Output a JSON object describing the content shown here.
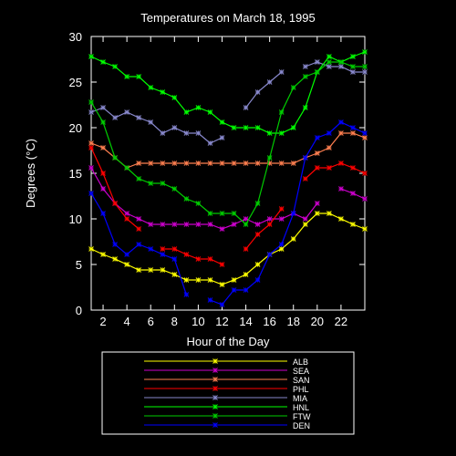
{
  "chart_data": {
    "type": "line",
    "title": "Temperatures on March 18, 1995",
    "xlabel": "Hour of the Day",
    "ylabel": "Degrees (°C)",
    "xlim": [
      1,
      24
    ],
    "ylim": [
      0,
      30
    ],
    "xticks": [
      2,
      4,
      6,
      8,
      10,
      12,
      14,
      16,
      18,
      20,
      22
    ],
    "yticks": [
      0,
      5,
      10,
      15,
      20,
      25,
      30
    ],
    "grid": false,
    "legend_position": "bottom",
    "series": [
      {
        "name": "ALB",
        "color": "#ffff00",
        "points": [
          [
            1,
            6.7
          ],
          [
            2,
            6.1
          ],
          [
            3,
            5.6
          ],
          [
            4,
            5.0
          ],
          [
            5,
            4.4
          ],
          [
            6,
            4.4
          ],
          [
            7,
            4.4
          ],
          [
            8,
            3.9
          ],
          [
            9,
            3.3
          ],
          [
            10,
            3.3
          ],
          [
            11,
            3.3
          ],
          [
            12,
            2.8
          ],
          [
            13,
            3.3
          ],
          [
            14,
            3.9
          ],
          [
            15,
            5.0
          ],
          [
            16,
            6.1
          ],
          [
            17,
            6.7
          ],
          [
            18,
            7.8
          ],
          [
            19,
            9.4
          ],
          [
            20,
            10.6
          ],
          [
            21,
            10.6
          ],
          [
            22,
            10.0
          ],
          [
            23,
            9.4
          ],
          [
            24,
            8.9
          ]
        ]
      },
      {
        "name": "SEA",
        "color": "#cc00cc",
        "points": [
          [
            1,
            15.6
          ],
          [
            2,
            13.3
          ],
          [
            3,
            11.7
          ],
          [
            4,
            10.6
          ],
          [
            5,
            10.0
          ],
          [
            6,
            9.4
          ],
          [
            7,
            9.4
          ],
          [
            8,
            9.4
          ],
          [
            9,
            9.4
          ],
          [
            10,
            9.4
          ],
          [
            11,
            9.4
          ],
          [
            12,
            8.9
          ],
          [
            13,
            9.4
          ],
          [
            14,
            10.0
          ],
          [
            15,
            9.4
          ],
          [
            16,
            10.0
          ],
          [
            17,
            10.0
          ],
          [
            18,
            10.6
          ],
          [
            19,
            10.0
          ],
          [
            20,
            11.7
          ],
          [
            21,
            null
          ],
          [
            22,
            13.3
          ],
          [
            23,
            12.8
          ],
          [
            24,
            12.2
          ]
        ]
      },
      {
        "name": "SAN",
        "color": "#ff7f50",
        "points": [
          [
            1,
            18.3
          ],
          [
            2,
            17.8
          ],
          [
            3,
            16.7
          ],
          [
            4,
            15.6
          ],
          [
            5,
            16.1
          ],
          [
            6,
            16.1
          ],
          [
            7,
            16.1
          ],
          [
            8,
            16.1
          ],
          [
            9,
            16.1
          ],
          [
            10,
            16.1
          ],
          [
            11,
            16.1
          ],
          [
            12,
            16.1
          ],
          [
            13,
            16.1
          ],
          [
            14,
            16.1
          ],
          [
            15,
            16.1
          ],
          [
            16,
            16.1
          ],
          [
            17,
            16.1
          ],
          [
            18,
            16.1
          ],
          [
            19,
            16.7
          ],
          [
            20,
            17.2
          ],
          [
            21,
            17.8
          ],
          [
            22,
            19.4
          ],
          [
            23,
            19.4
          ],
          [
            24,
            18.9
          ]
        ]
      },
      {
        "name": "PHL",
        "color": "#ff0000",
        "points": [
          [
            1,
            17.8
          ],
          [
            2,
            15.0
          ],
          [
            3,
            11.7
          ],
          [
            4,
            10.0
          ],
          [
            5,
            8.9
          ],
          [
            6,
            null
          ],
          [
            7,
            6.7
          ],
          [
            8,
            6.7
          ],
          [
            9,
            6.1
          ],
          [
            10,
            5.6
          ],
          [
            11,
            5.6
          ],
          [
            12,
            5.0
          ],
          [
            13,
            null
          ],
          [
            14,
            6.7
          ],
          [
            15,
            8.3
          ],
          [
            16,
            9.4
          ],
          [
            17,
            11.1
          ],
          [
            18,
            null
          ],
          [
            19,
            14.4
          ],
          [
            20,
            15.6
          ],
          [
            21,
            15.6
          ],
          [
            22,
            16.1
          ],
          [
            23,
            15.6
          ],
          [
            24,
            15.0
          ]
        ]
      },
      {
        "name": "MIA",
        "color": "#8888cc",
        "points": [
          [
            1,
            21.7
          ],
          [
            2,
            22.2
          ],
          [
            3,
            21.1
          ],
          [
            4,
            21.7
          ],
          [
            5,
            21.1
          ],
          [
            6,
            20.6
          ],
          [
            7,
            19.4
          ],
          [
            8,
            20.0
          ],
          [
            9,
            19.4
          ],
          [
            10,
            19.4
          ],
          [
            11,
            18.3
          ],
          [
            12,
            18.9
          ],
          [
            13,
            null
          ],
          [
            14,
            22.2
          ],
          [
            15,
            23.9
          ],
          [
            16,
            25.0
          ],
          [
            17,
            26.1
          ],
          [
            18,
            null
          ],
          [
            19,
            26.7
          ],
          [
            20,
            27.2
          ],
          [
            21,
            26.7
          ],
          [
            22,
            26.7
          ],
          [
            23,
            26.1
          ],
          [
            24,
            26.1
          ]
        ]
      },
      {
        "name": "HNL",
        "color": "#00ff00",
        "points": [
          [
            1,
            27.8
          ],
          [
            2,
            27.2
          ],
          [
            3,
            26.7
          ],
          [
            4,
            25.6
          ],
          [
            5,
            25.6
          ],
          [
            6,
            24.4
          ],
          [
            7,
            23.9
          ],
          [
            8,
            23.3
          ],
          [
            9,
            21.7
          ],
          [
            10,
            22.2
          ],
          [
            11,
            21.7
          ],
          [
            12,
            20.6
          ],
          [
            13,
            20.0
          ],
          [
            14,
            20.0
          ],
          [
            15,
            20.0
          ],
          [
            16,
            19.4
          ],
          [
            17,
            19.4
          ],
          [
            18,
            20.0
          ],
          [
            19,
            22.2
          ],
          [
            20,
            26.1
          ],
          [
            21,
            27.8
          ],
          [
            22,
            27.2
          ],
          [
            23,
            27.8
          ],
          [
            24,
            28.3
          ]
        ]
      },
      {
        "name": "FTW",
        "color": "#00cc00",
        "points": [
          [
            1,
            22.8
          ],
          [
            2,
            20.6
          ],
          [
            3,
            16.7
          ],
          [
            4,
            15.6
          ],
          [
            5,
            14.4
          ],
          [
            6,
            13.9
          ],
          [
            7,
            13.9
          ],
          [
            8,
            13.3
          ],
          [
            9,
            12.2
          ],
          [
            10,
            11.7
          ],
          [
            11,
            10.6
          ],
          [
            12,
            10.6
          ],
          [
            13,
            10.6
          ],
          [
            14,
            9.4
          ],
          [
            15,
            11.7
          ],
          [
            16,
            16.7
          ],
          [
            17,
            21.7
          ],
          [
            18,
            24.4
          ],
          [
            19,
            25.6
          ],
          [
            20,
            26.1
          ],
          [
            21,
            27.2
          ],
          [
            22,
            27.2
          ],
          [
            23,
            26.7
          ],
          [
            24,
            26.7
          ]
        ]
      },
      {
        "name": "DEN",
        "color": "#0000ff",
        "points": [
          [
            1,
            12.8
          ],
          [
            2,
            10.6
          ],
          [
            3,
            7.2
          ],
          [
            4,
            6.1
          ],
          [
            5,
            7.2
          ],
          [
            6,
            6.7
          ],
          [
            7,
            6.1
          ],
          [
            8,
            5.6
          ],
          [
            9,
            1.7
          ],
          [
            10,
            null
          ],
          [
            11,
            1.1
          ],
          [
            12,
            0.6
          ],
          [
            13,
            2.2
          ],
          [
            14,
            2.2
          ],
          [
            15,
            3.3
          ],
          [
            16,
            6.1
          ],
          [
            17,
            7.2
          ],
          [
            18,
            10.6
          ],
          [
            19,
            16.7
          ],
          [
            20,
            18.9
          ],
          [
            21,
            19.4
          ],
          [
            22,
            20.6
          ],
          [
            23,
            20.0
          ],
          [
            24,
            19.4
          ]
        ]
      }
    ]
  }
}
